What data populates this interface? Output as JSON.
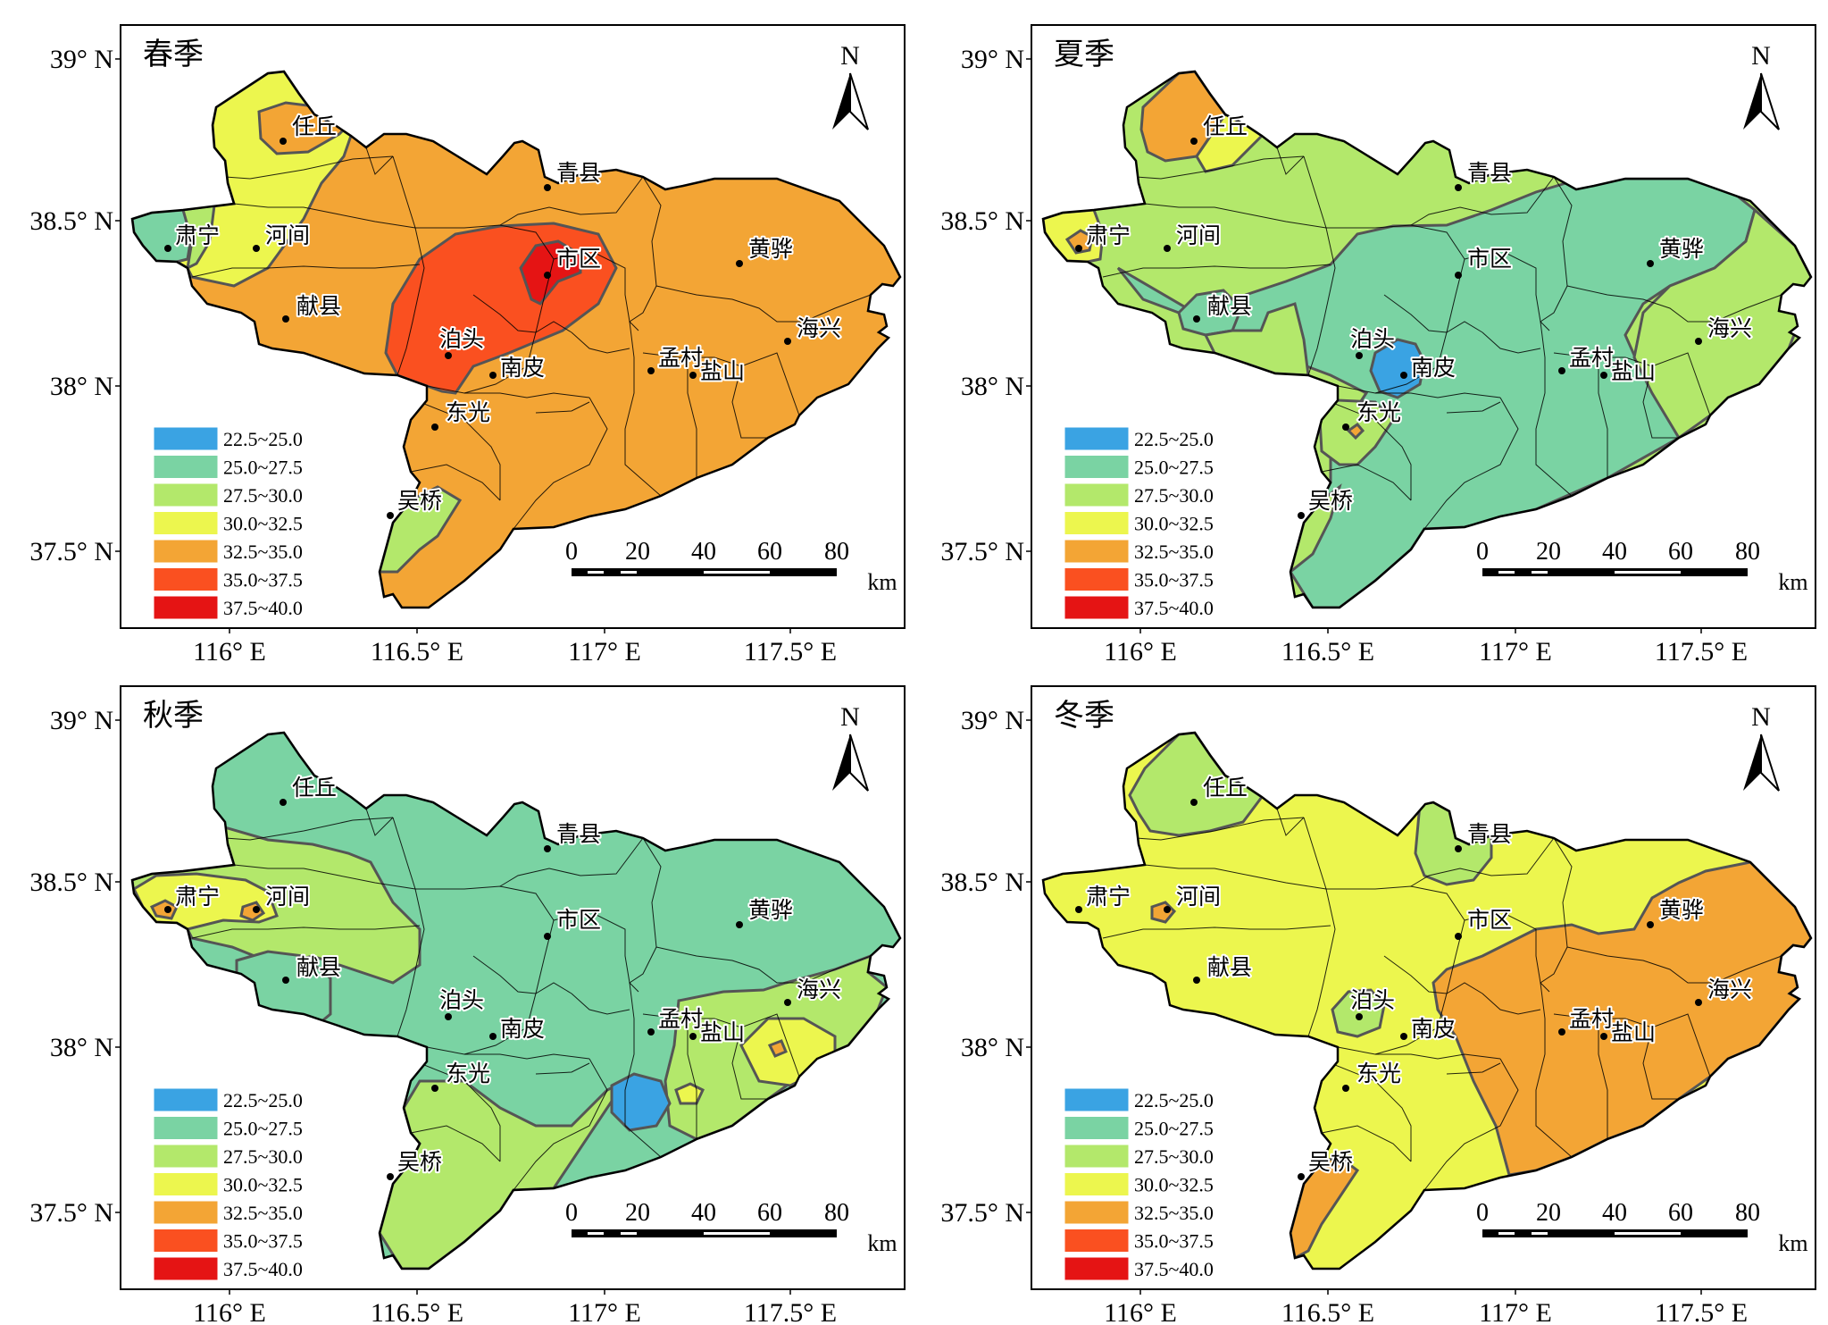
{
  "palette": [
    {
      "label": "22.5~25.0",
      "color": "#3aa3e3"
    },
    {
      "label": "25.0~27.5",
      "color": "#7ad3a3"
    },
    {
      "label": "27.5~30.0",
      "color": "#b3e86b"
    },
    {
      "label": "30.0~32.5",
      "color": "#ecf64e"
    },
    {
      "label": "32.5~35.0",
      "color": "#f3a535"
    },
    {
      "label": "35.0~37.5",
      "color": "#fa5020"
    },
    {
      "label": "37.5~40.0",
      "color": "#e51414"
    }
  ],
  "axes": {
    "lat_labels": [
      "39° N",
      "38.5° N",
      "38° N",
      "37.5° N"
    ],
    "lon_labels": [
      "116° E",
      "116.5° E",
      "117° E",
      "117.5° E"
    ]
  },
  "north_label": "N",
  "scale": {
    "ticks": [
      "0",
      "20",
      "40",
      "60",
      "80"
    ],
    "unit": "km"
  },
  "cities": [
    {
      "name": "任丘",
      "key": "renqiu"
    },
    {
      "name": "青县",
      "key": "qingxian"
    },
    {
      "name": "肃宁",
      "key": "suning"
    },
    {
      "name": "河间",
      "key": "hejian"
    },
    {
      "name": "黄骅",
      "key": "huanghua"
    },
    {
      "name": "市区",
      "key": "shiqu"
    },
    {
      "name": "献县",
      "key": "xianxian"
    },
    {
      "name": "海兴",
      "key": "haixing"
    },
    {
      "name": "泊头",
      "key": "botou"
    },
    {
      "name": "孟村",
      "key": "mengcun"
    },
    {
      "name": "南皮",
      "key": "nanpi"
    },
    {
      "name": "盐山",
      "key": "yanshan"
    },
    {
      "name": "东光",
      "key": "dongguang"
    },
    {
      "name": "吴桥",
      "key": "wuqiao"
    }
  ],
  "seasons": [
    {
      "title": "春季",
      "base_class": "32.5~35.0"
    },
    {
      "title": "夏季",
      "base_class": "27.5~30.0"
    },
    {
      "title": "秋季",
      "base_class": "25.0~27.5"
    },
    {
      "title": "冬季",
      "base_class": "30.0~32.5"
    }
  ]
}
